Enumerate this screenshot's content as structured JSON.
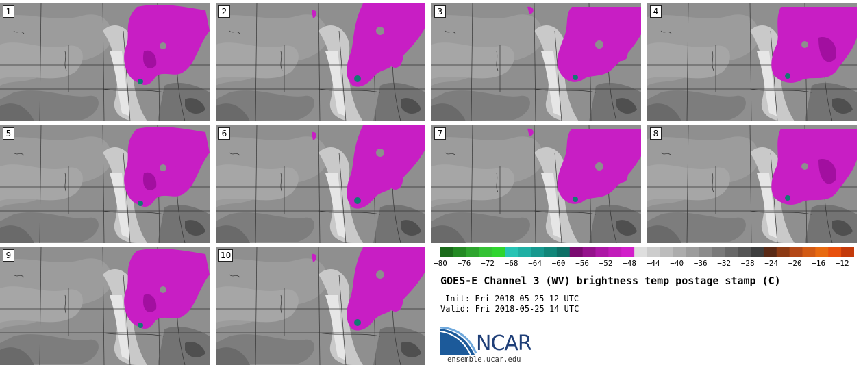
{
  "panels": [
    {
      "label": "1"
    },
    {
      "label": "2"
    },
    {
      "label": "3"
    },
    {
      "label": "4"
    },
    {
      "label": "5"
    },
    {
      "label": "6"
    },
    {
      "label": "7"
    },
    {
      "label": "8"
    },
    {
      "label": "9"
    },
    {
      "label": "10"
    }
  ],
  "colorbar": {
    "ticks": [
      "−80",
      "−76",
      "−72",
      "−68",
      "−64",
      "−60",
      "−56",
      "−52",
      "−48",
      "−44",
      "−40",
      "−36",
      "−32",
      "−28",
      "−24",
      "−20",
      "−16",
      "−12"
    ],
    "min": -80,
    "max": -10,
    "colors": [
      "#1b6b1b",
      "#238a23",
      "#2ea52e",
      "#34c234",
      "#2fd52f",
      "#27c4b4",
      "#1fb0a4",
      "#17998f",
      "#118679",
      "#0e6f66",
      "#7a0a70",
      "#95118c",
      "#ad17a6",
      "#c21cba",
      "#d21fca",
      "#dedede",
      "#cccccc",
      "#bcbcbc",
      "#acacac",
      "#9c9c9c",
      "#8c8c8c",
      "#7a7a7a",
      "#686868",
      "#555555",
      "#3e3e3e",
      "#5a2a16",
      "#8c3a14",
      "#b44816",
      "#d25a14",
      "#e86a10",
      "#e8500c",
      "#c43a0a"
    ]
  },
  "title": "GOES-E Channel 3 (WV) brightness temp postage stamp (C)",
  "init": "Init: Fri 2018-05-25 12 UTC",
  "valid": "Valid: Fri 2018-05-25 14 UTC",
  "logo": {
    "text": "NCAR",
    "url": "ensemble.ucar.edu"
  }
}
